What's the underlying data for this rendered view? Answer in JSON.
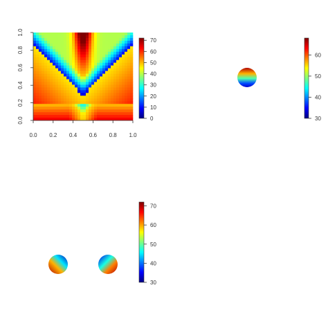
{
  "colors": {
    "jet": [
      "#00007f",
      "#0000ff",
      "#007fff",
      "#00ffff",
      "#7fff7f",
      "#ffff00",
      "#ff7f00",
      "#ff0000",
      "#7f0000"
    ],
    "axis": "#333333"
  },
  "chart_data": [
    {
      "type": "heatmap",
      "xlabel": "",
      "ylabel": "",
      "xlim": [
        0,
        1
      ],
      "ylim": [
        0,
        1
      ],
      "x_ticks": [
        "0.0",
        "0.2",
        "0.4",
        "0.6",
        "0.8",
        "1.0"
      ],
      "y_ticks": [
        "0.0",
        "0.2",
        "0.4",
        "0.6",
        "0.8",
        "1.0"
      ],
      "colorbar": {
        "range": [
          0,
          72
        ],
        "ticks": [
          "0",
          "10",
          "20",
          "30",
          "40",
          "50",
          "60",
          "70"
        ]
      }
    },
    {
      "type": "heatmap",
      "xlabel": "",
      "ylabel": "",
      "region": "disc",
      "center": [
        0.5,
        0.5
      ],
      "radius": 0.1,
      "colorbar": {
        "range": [
          30,
          68
        ],
        "ticks": [
          "30",
          "40",
          "50",
          "60"
        ]
      }
    },
    {
      "type": "heatmap",
      "xlabel": "",
      "ylabel": "",
      "region": "two discs",
      "colorbar": {
        "range": [
          30,
          72
        ],
        "ticks": [
          "30",
          "40",
          "50",
          "60",
          "70"
        ]
      }
    }
  ]
}
